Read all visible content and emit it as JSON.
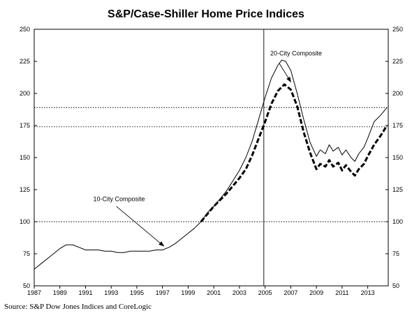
{
  "chart_data": {
    "type": "line",
    "title": "S&P/Case-Shiller Home Price Indices",
    "xlabel": "",
    "ylabel": "",
    "xlim": [
      1987,
      2014.6
    ],
    "ylim": [
      50,
      250
    ],
    "y_ticks": [
      50,
      75,
      100,
      125,
      150,
      175,
      200,
      225,
      250
    ],
    "x_ticks": [
      1987,
      1989,
      1991,
      1993,
      1995,
      1997,
      1999,
      2001,
      2003,
      2005,
      2007,
      2009,
      2011,
      2013
    ],
    "grid": false,
    "reference_lines": [
      {
        "orientation": "horizontal",
        "y": 100,
        "style": "dotted"
      },
      {
        "orientation": "horizontal",
        "y": 174,
        "style": "dotted"
      },
      {
        "orientation": "horizontal",
        "y": 189,
        "style": "dotted"
      },
      {
        "orientation": "vertical",
        "x": 2004.9,
        "style": "solid"
      }
    ],
    "series": [
      {
        "name": "10-City Composite",
        "style": "solid-thin",
        "x": [
          1987.0,
          1987.5,
          1988.0,
          1988.5,
          1989.0,
          1989.5,
          1990.0,
          1990.5,
          1991.0,
          1991.5,
          1992.0,
          1992.5,
          1993.0,
          1993.5,
          1994.0,
          1994.5,
          1995.0,
          1995.5,
          1996.0,
          1996.5,
          1997.0,
          1997.5,
          1998.0,
          1998.5,
          1999.0,
          1999.5,
          2000.0,
          2000.5,
          2001.0,
          2001.5,
          2002.0,
          2002.5,
          2003.0,
          2003.5,
          2004.0,
          2004.5,
          2005.0,
          2005.5,
          2006.0,
          2006.3,
          2006.6,
          2007.0,
          2007.5,
          2008.0,
          2008.5,
          2009.0,
          2009.3,
          2009.7,
          2010.0,
          2010.3,
          2010.7,
          2011.0,
          2011.3,
          2011.7,
          2012.0,
          2012.3,
          2012.7,
          2013.0,
          2013.5,
          2014.0,
          2014.5
        ],
        "values": [
          63,
          67,
          71,
          75,
          79,
          82,
          82,
          80,
          78,
          78,
          78,
          77,
          77,
          76,
          76,
          77,
          77,
          77,
          77,
          78,
          78,
          80,
          83,
          87,
          91,
          95,
          100,
          107,
          112,
          118,
          124,
          132,
          140,
          150,
          163,
          180,
          197,
          212,
          222,
          226,
          225,
          218,
          200,
          180,
          162,
          151,
          156,
          153,
          160,
          155,
          158,
          152,
          156,
          150,
          147,
          153,
          158,
          165,
          178,
          183,
          189
        ]
      },
      {
        "name": "20-City Composite",
        "style": "dashed-thick",
        "x": [
          2000.0,
          2000.5,
          2001.0,
          2001.5,
          2002.0,
          2002.5,
          2003.0,
          2003.5,
          2004.0,
          2004.5,
          2005.0,
          2005.5,
          2006.0,
          2006.5,
          2007.0,
          2007.5,
          2008.0,
          2008.5,
          2009.0,
          2009.3,
          2009.7,
          2010.0,
          2010.3,
          2010.7,
          2011.0,
          2011.3,
          2011.7,
          2012.0,
          2012.3,
          2012.7,
          2013.0,
          2013.5,
          2014.0,
          2014.5
        ],
        "values": [
          100,
          106,
          112,
          117,
          122,
          128,
          134,
          141,
          152,
          165,
          178,
          192,
          202,
          207,
          203,
          190,
          170,
          154,
          141,
          145,
          143,
          148,
          143,
          146,
          140,
          144,
          139,
          136,
          141,
          145,
          151,
          160,
          167,
          175
        ]
      }
    ],
    "annotations": [
      {
        "text": "20-City Composite"
      },
      {
        "text": "10-City Composite"
      }
    ]
  },
  "source": "Source: S&P Dow Jones Indices and CoreLogic"
}
